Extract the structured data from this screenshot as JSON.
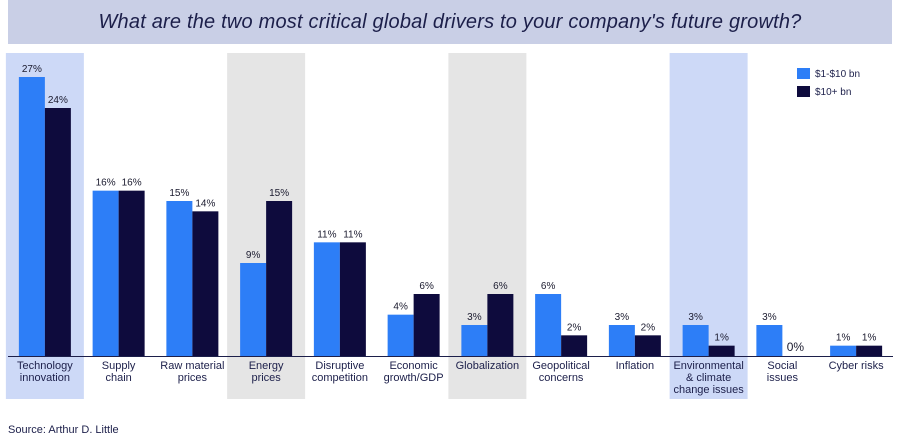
{
  "chart_data": {
    "type": "bar",
    "title": "What are the two most critical global drivers to your company's future growth?",
    "categories": [
      [
        "Technology",
        "innovation"
      ],
      [
        "Supply",
        "chain"
      ],
      [
        "Raw material",
        "prices"
      ],
      [
        "Energy",
        "prices"
      ],
      [
        "Disruptive",
        "competition"
      ],
      [
        "Economic",
        "growth/GDP"
      ],
      [
        "Globalization"
      ],
      [
        "Geopolitical",
        "concerns"
      ],
      [
        "Inflation"
      ],
      [
        "Environmental",
        "& climate",
        "change issues"
      ],
      [
        "Social",
        "issues"
      ],
      [
        "Cyber risks"
      ]
    ],
    "series": [
      {
        "name": "$1-$10 bn",
        "color": "#2d7ef7",
        "values": [
          27,
          16,
          15,
          9,
          11,
          4,
          3,
          6,
          3,
          3,
          3,
          1
        ],
        "labels": [
          "27%",
          "16%",
          "15%",
          "9%",
          "11%",
          "4%",
          "3%",
          "6%",
          "3%",
          "3%",
          "3%",
          "1%"
        ]
      },
      {
        "name": "$10+ bn",
        "color": "#0e0b3d",
        "values": [
          24,
          16,
          14,
          15,
          11,
          6,
          6,
          2,
          2,
          1,
          0,
          1
        ],
        "labels": [
          "24%",
          "16%",
          "14%",
          "15%",
          "11%",
          "6%",
          "6%",
          "2%",
          "2%",
          "1%",
          "0%",
          "1%"
        ]
      }
    ],
    "highlighted_categories": [
      {
        "index": 0,
        "color": "#cdd9f7"
      },
      {
        "index": 3,
        "color": "#e5e5e5"
      },
      {
        "index": 6,
        "color": "#e5e5e5"
      },
      {
        "index": 9,
        "color": "#cdd9f7"
      }
    ],
    "ylim": [
      0,
      27
    ],
    "legend_position": "top-right",
    "grid": false
  },
  "source_text": "Source: Arthur D. Little"
}
